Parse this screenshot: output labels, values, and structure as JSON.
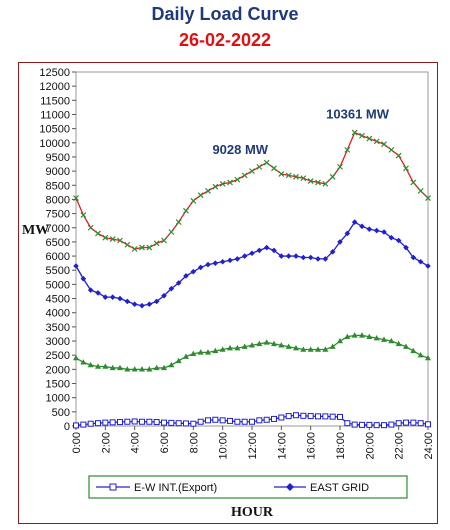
{
  "chart_data": {
    "type": "line",
    "title": "Daily Load Curve",
    "subtitle": "26-02-2022",
    "xlabel": "HOUR",
    "ylabel": "MW",
    "ylim": [
      0,
      12500
    ],
    "ytick_step": 500,
    "xlim": [
      0,
      24
    ],
    "xticks": [
      "0:00",
      "2:00",
      "4:00",
      "6:00",
      "8:00",
      "10:00",
      "12:00",
      "14:00",
      "16:00",
      "18:00",
      "20:00",
      "22:00",
      "24:00"
    ],
    "x": [
      0,
      0.5,
      1,
      1.5,
      2,
      2.5,
      3,
      3.5,
      4,
      4.5,
      5,
      5.5,
      6,
      6.5,
      7,
      7.5,
      8,
      8.5,
      9,
      9.5,
      10,
      10.5,
      11,
      11.5,
      12,
      12.5,
      13,
      13.5,
      14,
      14.5,
      15,
      15.5,
      16,
      16.5,
      17,
      17.5,
      18,
      18.5,
      19,
      19.5,
      20,
      20.5,
      21,
      21.5,
      22,
      22.5,
      23,
      23.5,
      24
    ],
    "series": [
      {
        "name": "",
        "color": "#e02020",
        "marker": "x",
        "marker_color": "#2e8b2e",
        "values": [
          8050,
          7450,
          7000,
          6800,
          6650,
          6600,
          6550,
          6400,
          6250,
          6300,
          6300,
          6450,
          6550,
          6850,
          7200,
          7600,
          7950,
          8150,
          8300,
          8450,
          8550,
          8600,
          8700,
          8850,
          9000,
          9150,
          9300,
          9100,
          8900,
          8850,
          8800,
          8750,
          8650,
          8600,
          8550,
          8800,
          9150,
          9750,
          10361,
          10250,
          10150,
          10050,
          9950,
          9750,
          9550,
          9100,
          8600,
          8300,
          8050
        ]
      },
      {
        "name": "EAST GRID",
        "color": "#2020d0",
        "marker": "diamond",
        "values": [
          5650,
          5200,
          4800,
          4700,
          4550,
          4550,
          4500,
          4400,
          4300,
          4250,
          4300,
          4400,
          4600,
          4850,
          5050,
          5300,
          5450,
          5600,
          5700,
          5750,
          5800,
          5850,
          5900,
          6000,
          6100,
          6200,
          6300,
          6200,
          6000,
          6000,
          6000,
          5950,
          5950,
          5900,
          5900,
          6150,
          6500,
          6800,
          7200,
          7050,
          6950,
          6900,
          6850,
          6650,
          6550,
          6300,
          5950,
          5800,
          5650
        ]
      },
      {
        "name": "",
        "color": "#2e8b2e",
        "marker": "triangle",
        "values": [
          2400,
          2250,
          2150,
          2100,
          2100,
          2050,
          2050,
          2000,
          2000,
          2000,
          2000,
          2050,
          2050,
          2150,
          2300,
          2450,
          2550,
          2600,
          2600,
          2650,
          2700,
          2750,
          2750,
          2800,
          2850,
          2900,
          2950,
          2900,
          2850,
          2800,
          2750,
          2700,
          2700,
          2700,
          2700,
          2800,
          3000,
          3150,
          3200,
          3200,
          3150,
          3100,
          3050,
          3000,
          2900,
          2800,
          2650,
          2500,
          2400
        ]
      },
      {
        "name": "E-W INT.(Export)",
        "color": "#2020d0",
        "marker": "square",
        "values": [
          20,
          50,
          80,
          100,
          120,
          130,
          140,
          150,
          160,
          150,
          150,
          140,
          120,
          110,
          100,
          90,
          80,
          150,
          200,
          220,
          200,
          180,
          150,
          150,
          150,
          200,
          220,
          250,
          300,
          350,
          380,
          360,
          350,
          340,
          340,
          330,
          320,
          100,
          50,
          40,
          40,
          30,
          30,
          50,
          100,
          120,
          120,
          100,
          60
        ]
      }
    ],
    "annotations": [
      {
        "text": "9028 MW",
        "x": 11.2,
        "y": 9600
      },
      {
        "text": "10361 MW",
        "x": 19.2,
        "y": 10850
      }
    ],
    "legend": {
      "position": "bottom",
      "entries": [
        "E-W INT.(Export)",
        "EAST GRID"
      ]
    },
    "grid": false
  }
}
